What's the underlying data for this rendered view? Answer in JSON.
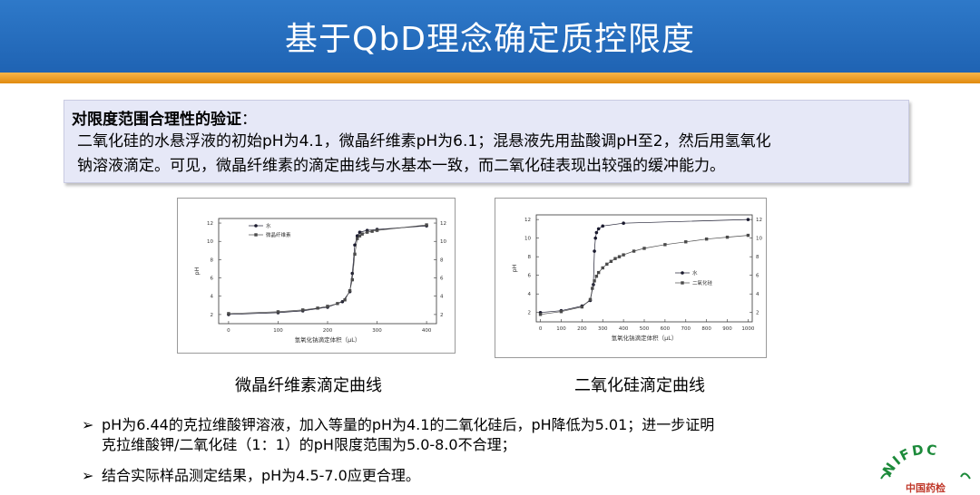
{
  "title": "基于QbD理念确定质控限度",
  "callout": {
    "heading": "对限度范围合理性的验证",
    "colon": "：",
    "line1": "二氧化硅的水悬浮液的初始pH为4.1，微晶纤维素pH为6.1；混悬液先用盐酸调pH至2，然后用氢氧化",
    "line2": "钠溶液滴定。可见，微晶纤维素的滴定曲线与水基本一致，而二氧化硅表现出较强的缓冲能力。"
  },
  "chart_data": [
    {
      "type": "scatter",
      "xlabel": "氢氧化钠滴定体积（μL）",
      "ylabel": "pH",
      "xlim": [
        -20,
        420
      ],
      "ylim": [
        1,
        12.5
      ],
      "xticks": [
        "0",
        "100",
        "200",
        "300",
        "400"
      ],
      "yticks": [
        "2",
        "4",
        "6",
        "8",
        "10",
        "12"
      ],
      "series": [
        {
          "name": "水",
          "x": [
            0,
            100,
            150,
            200,
            230,
            245,
            250,
            255,
            260,
            265,
            280,
            300,
            400
          ],
          "y": [
            2.0,
            2.2,
            2.4,
            2.8,
            3.4,
            4.5,
            6.5,
            9.6,
            10.6,
            11.0,
            11.2,
            11.3,
            11.7
          ]
        },
        {
          "name": "微晶纤维素",
          "x": [
            0,
            100,
            150,
            180,
            200,
            220,
            235,
            245,
            250,
            255,
            260,
            265,
            270,
            280,
            290,
            300,
            400
          ],
          "y": [
            2.1,
            2.3,
            2.5,
            2.7,
            2.9,
            3.2,
            3.6,
            4.6,
            5.8,
            8.6,
            10.3,
            10.6,
            10.8,
            11.0,
            11.1,
            11.2,
            11.8
          ]
        }
      ]
    },
    {
      "type": "scatter",
      "xlabel": "氢氧化钠滴定体积（μL）",
      "ylabel": "pH",
      "xlim": [
        -20,
        1020
      ],
      "ylim": [
        1,
        12.5
      ],
      "xticks": [
        "0",
        "100",
        "200",
        "300",
        "400",
        "500",
        "600",
        "700",
        "800",
        "900",
        "1000"
      ],
      "yticks": [
        "2",
        "4",
        "6",
        "8",
        "10",
        "12"
      ],
      "series": [
        {
          "name": "水",
          "x": [
            0,
            100,
            200,
            240,
            255,
            260,
            265,
            270,
            280,
            300,
            400,
            1000
          ],
          "y": [
            2.0,
            2.2,
            2.7,
            3.3,
            5.0,
            8.6,
            10.0,
            10.6,
            11.0,
            11.3,
            11.6,
            12.0
          ]
        },
        {
          "name": "二氧化硅",
          "x": [
            0,
            100,
            200,
            240,
            250,
            260,
            270,
            280,
            300,
            320,
            340,
            360,
            380,
            400,
            450,
            500,
            600,
            700,
            800,
            900,
            1000
          ],
          "y": [
            1.8,
            2.1,
            2.6,
            3.4,
            4.6,
            5.4,
            5.9,
            6.3,
            6.8,
            7.2,
            7.5,
            7.8,
            8.0,
            8.2,
            8.6,
            8.9,
            9.3,
            9.6,
            9.9,
            10.1,
            10.3
          ]
        }
      ]
    }
  ],
  "captions": {
    "left": "微晶纤维素滴定曲线",
    "right": "二氧化硅滴定曲线"
  },
  "bullets": {
    "arrow": "➢",
    "b1_line1": "pH为6.44的克拉维酸钾溶液，加入等量的pH为4.1的二氧化硅后，pH降低为5.01；进一步证明",
    "b1_line2": "克拉维酸钾/二氧化硅（1：1）的pH限度范围为5.0-8.0不合理；",
    "b2": "结合实际样品测定结果，pH为4.5-7.0应更合理。"
  },
  "logo": {
    "text": "NIFDC",
    "subtext": "中国药检",
    "color": "#1c8a3a"
  }
}
